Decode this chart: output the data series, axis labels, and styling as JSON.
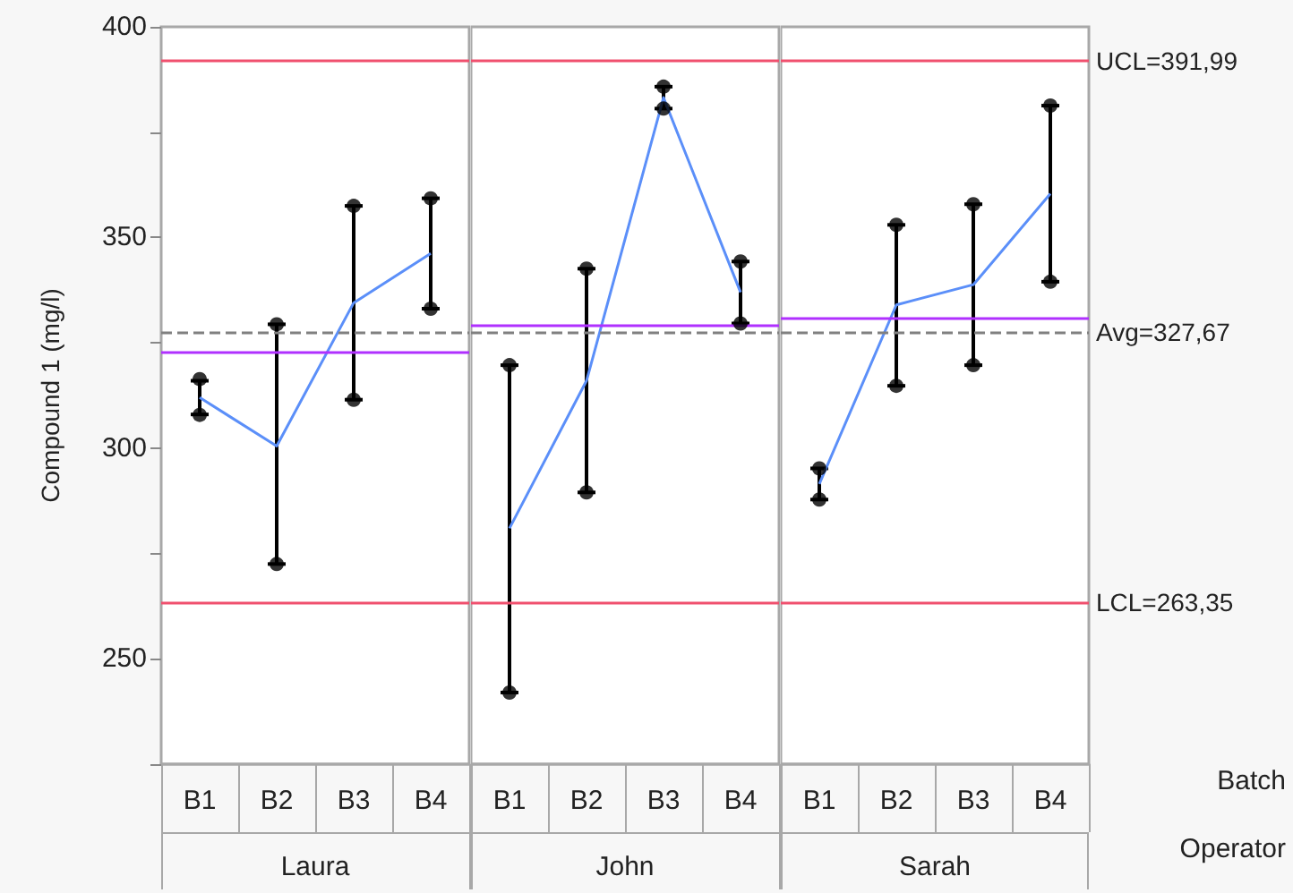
{
  "chart_data": [
    {
      "type": "line",
      "xlabel": "Laura",
      "ylabel": "Compound 1 (mg/l)",
      "categories": [
        "B1",
        "B2",
        "B3",
        "B4"
      ],
      "ylim": [
        225,
        400
      ],
      "yticks": [
        {
          "value": 225,
          "label": null
        },
        250,
        {
          "value": 275,
          "label": null
        },
        300,
        {
          "value": 325,
          "label": null
        },
        350,
        {
          "value": 375,
          "label": null
        },
        400
      ],
      "grid": false,
      "series": [
        {
          "color": "#5b8ff9",
          "marker": "none",
          "values": [
            312,
            300.5,
            334.5,
            346.2
          ],
          "errors": [
            [
              308,
              316
            ],
            [
              272.5,
              329.4
            ],
            [
              311.5,
              357.5
            ],
            [
              333.1,
              359.3
            ]
          ]
        },
        {
          "type": "scatter",
          "color": "#000000",
          "marker": "circle",
          "x": [
            "B1",
            "B1",
            "B2",
            "B2",
            "B3",
            "B3",
            "B4",
            "B4"
          ],
          "values": [
            316.4,
            307.9,
            329.4,
            272.5,
            357.5,
            311.5,
            359.3,
            333.1
          ]
        }
      ],
      "ref_lines": [
        {
          "axis": "y",
          "value": 391.99,
          "color": "#f0506e",
          "line_style": "solid"
        },
        {
          "axis": "y",
          "value": 327.67,
          "color": "#808080",
          "line_style": "dashed"
        },
        {
          "axis": "y",
          "value": 263.35,
          "color": "#f0506e",
          "line_style": "solid"
        },
        {
          "axis": "y",
          "value": 323,
          "color": "#b030ff",
          "line_style": "solid"
        }
      ]
    },
    {
      "type": "line",
      "xlabel": "John",
      "categories": [
        "B1",
        "B2",
        "B3",
        "B4"
      ],
      "ylim": [
        225,
        400
      ],
      "grid": false,
      "tick_labels": "x",
      "series": [
        {
          "color": "#5b8ff9",
          "marker": "none",
          "values": [
            281,
            316,
            383.2,
            337
          ],
          "errors": [
            [
              242,
              319.7
            ],
            [
              289.5,
              342.6
            ],
            [
              380.6,
              385.8
            ],
            [
              329.6,
              344.3
            ]
          ]
        },
        {
          "type": "scatter",
          "color": "#000000",
          "marker": "circle",
          "x": [
            "B1",
            "B1",
            "B2",
            "B2",
            "B3",
            "B3",
            "B4",
            "B4"
          ],
          "values": [
            319.7,
            242,
            342.6,
            289.5,
            385.8,
            380.6,
            344.3,
            329.6
          ]
        }
      ],
      "ref_lines": [
        {
          "axis": "y",
          "value": 391.99,
          "color": "#f0506e",
          "line_style": "solid"
        },
        {
          "axis": "y",
          "value": 327.67,
          "color": "#808080",
          "line_style": "dashed"
        },
        {
          "axis": "y",
          "value": 263.35,
          "color": "#f0506e",
          "line_style": "solid"
        },
        {
          "axis": "y",
          "value": 329.3,
          "color": "#b030ff",
          "line_style": "solid"
        }
      ]
    },
    {
      "type": "line",
      "xlabel": "Sarah",
      "categories": [
        "B1",
        "B2",
        "B3",
        "B4"
      ],
      "ylim": [
        225,
        400
      ],
      "grid": false,
      "tick_labels": "x",
      "annotations": [
        "Batch",
        "Operator"
      ],
      "series": [
        {
          "color": "#5b8ff9",
          "marker": "none",
          "values": [
            291.5,
            334,
            338.8,
            360.4
          ],
          "errors": [
            [
              287.8,
              295.2
            ],
            [
              314.8,
              353
            ],
            [
              319.7,
              357.9
            ],
            [
              339.5,
              381.3
            ]
          ]
        },
        {
          "type": "scatter",
          "color": "#000000",
          "marker": "circle",
          "x": [
            "B1",
            "B1",
            "B2",
            "B2",
            "B3",
            "B3",
            "B4",
            "B4"
          ],
          "values": [
            295.2,
            287.8,
            353,
            314.8,
            357.9,
            319.7,
            381.3,
            339.5
          ]
        }
      ],
      "ref_lines": [
        {
          "axis": "y",
          "value": 391.99,
          "label": "UCL=391,99",
          "color": "#f0506e",
          "line_style": "solid"
        },
        {
          "axis": "y",
          "value": 327.67,
          "label": "Avg=327,67",
          "color": "#808080",
          "line_style": "dashed"
        },
        {
          "axis": "y",
          "value": 263.35,
          "label": "LCL=263,35",
          "color": "#f0506e",
          "line_style": "solid"
        },
        {
          "axis": "y",
          "value": 331,
          "color": "#b030ff",
          "line_style": "solid"
        }
      ]
    }
  ]
}
